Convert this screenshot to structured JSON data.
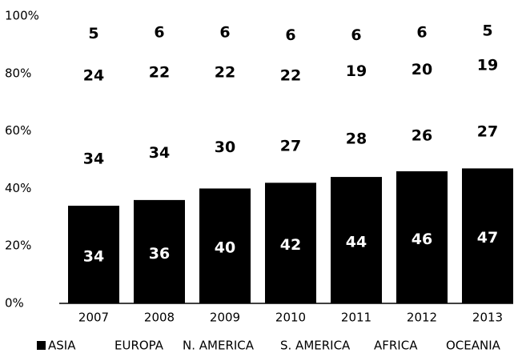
{
  "chart_data": {
    "type": "stacked_bar",
    "categories": [
      "2007",
      "2008",
      "2009",
      "2010",
      "2011",
      "2012",
      "2013"
    ],
    "series": [
      {
        "name": "ASIA",
        "color": "#000000",
        "values": [
          34,
          36,
          40,
          42,
          44,
          46,
          47
        ]
      },
      {
        "name": "EUROPA",
        "color": "#ffffff",
        "values": [
          34,
          34,
          30,
          27,
          28,
          26,
          27
        ]
      },
      {
        "name": "N. AMERICA",
        "color": "#ffffff",
        "values": [
          24,
          22,
          22,
          22,
          19,
          20,
          19
        ]
      },
      {
        "name": "S. AMERICA",
        "color": "#ffffff",
        "values": [
          5,
          6,
          6,
          6,
          6,
          6,
          5
        ]
      },
      {
        "name": "AFRICA",
        "color": "#ffffff",
        "values": [
          null,
          null,
          null,
          null,
          null,
          null,
          null
        ]
      },
      {
        "name": "OCEANIA",
        "color": "#ffffff",
        "values": [
          null,
          null,
          null,
          null,
          null,
          null,
          null
        ]
      }
    ],
    "ylim": [
      0,
      100
    ],
    "yticks": [
      {
        "value": 0,
        "label": "0%"
      },
      {
        "value": 20,
        "label": "20%"
      },
      {
        "value": 40,
        "label": "40%"
      },
      {
        "value": 60,
        "label": "60%"
      },
      {
        "value": 80,
        "label": "80%"
      },
      {
        "value": 100,
        "label": "100%"
      }
    ],
    "grid": false,
    "legend": "bottom"
  }
}
